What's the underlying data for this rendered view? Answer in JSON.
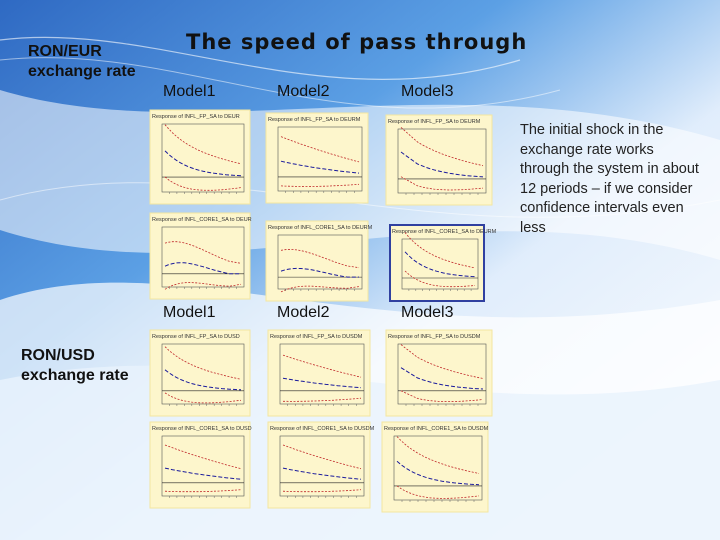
{
  "slide": {
    "title": "The speed of pass through",
    "label_eur_line1": "RON/EUR",
    "label_eur_line2": "exchange rate",
    "label_usd_line1": "RON/USD",
    "label_usd_line2": "exchange rate",
    "models_top": [
      "Model1",
      "Model2",
      "Model3"
    ],
    "models_bottom": [
      "Model1",
      "Model2",
      "Model3"
    ],
    "note": "The initial shock in the exchange rate works through the system in about 12 periods – if we consider confidence intervals even less",
    "colors": {
      "panel_bg": "#fdf6cc",
      "panel_border": "#f3e6a0",
      "response": "#1a1a9c",
      "band": "#c0282a",
      "zero": "#222222"
    }
  },
  "panels": [
    {
      "title": "Response of INFL_FP_SA to DEUR",
      "shape": "decay",
      "start": 0.55
    },
    {
      "title": "Response of INFL_FP_SA to DEURM",
      "shape": "flat",
      "start": 0.35
    },
    {
      "title": "Response of INFL_FP_SA to DEURM",
      "shape": "drop",
      "start": 0.6
    },
    {
      "title": "Response of INFL_CORE1_SA to DEUR",
      "shape": "hump",
      "start": 0.4
    },
    {
      "title": "Response of INFL_CORE1_SA to DEURM",
      "shape": "hump",
      "start": 0.35
    },
    {
      "title": "Response of INFL_CORE1_SA to DEURM",
      "shape": "decay",
      "start": 0.75
    },
    {
      "title": "Response of INFL_FP_SA to DUSD",
      "shape": "decay",
      "start": 0.5
    },
    {
      "title": "Response of INFL_FP_SA to DUSDM",
      "shape": "flat",
      "start": 0.3
    },
    {
      "title": "Response of INFL_FP_SA to DUSDM",
      "shape": "drop",
      "start": 0.55
    },
    {
      "title": "Response of INFL_CORE1_SA to DUSD",
      "shape": "flat",
      "start": 0.35
    },
    {
      "title": "Response of INFL_CORE1_SA to DUSDM",
      "shape": "flat",
      "start": 0.35
    },
    {
      "title": "Response of INFL_CORE1_SA to DUSDM",
      "shape": "decay",
      "start": 0.55
    }
  ]
}
